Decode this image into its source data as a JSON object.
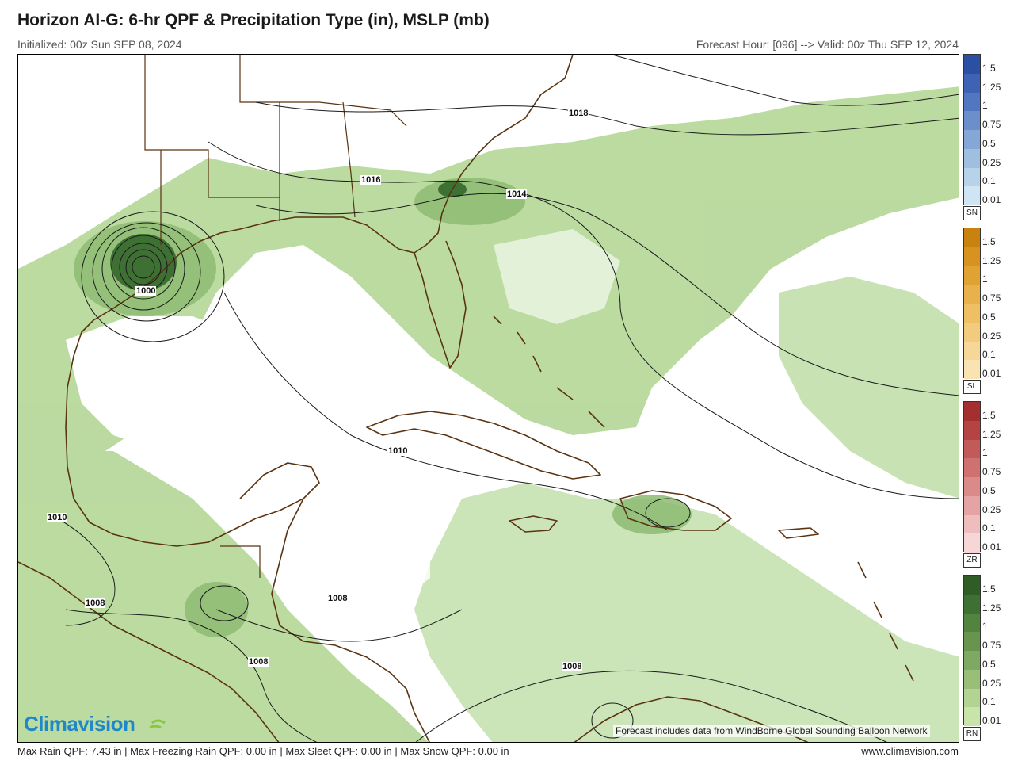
{
  "header": {
    "title": "Horizon AI-G: 6-hr QPF & Precipitation Type (in), MSLP (mb)",
    "initialized": "Initialized: 00z Sun SEP 08, 2024",
    "valid": "Forecast Hour: [096] --> Valid: 00z Thu SEP 12, 2024"
  },
  "legends": [
    {
      "tag": "SN",
      "colors": [
        "#2a4fa3",
        "#3e63b4",
        "#5177c0",
        "#6a8fcb",
        "#84a7d6",
        "#9ebfe0",
        "#b6d3ea",
        "#cfe5f3"
      ],
      "ticks": [
        "1.5",
        "1.25",
        "1",
        "0.75",
        "0.5",
        "0.25",
        "0.1",
        "0.01"
      ]
    },
    {
      "tag": "SL",
      "colors": [
        "#c9820e",
        "#d7921f",
        "#e0a233",
        "#e8b14b",
        "#efbf64",
        "#f3cb7e",
        "#f6d798",
        "#f9e3b3"
      ],
      "ticks": [
        "1.5",
        "1.25",
        "1",
        "0.75",
        "0.5",
        "0.25",
        "0.1",
        "0.01"
      ]
    },
    {
      "tag": "ZR",
      "colors": [
        "#a32f2f",
        "#b44444",
        "#c35a5a",
        "#d07171",
        "#db8a8a",
        "#e5a3a3",
        "#eebdbd",
        "#f6d6d6"
      ],
      "ticks": [
        "1.5",
        "1.25",
        "1",
        "0.75",
        "0.5",
        "0.25",
        "0.1",
        "0.01"
      ]
    },
    {
      "tag": "RN",
      "colors": [
        "#2f5d25",
        "#3f7033",
        "#52833f",
        "#67954e",
        "#7ea962",
        "#98be78",
        "#b2d492",
        "#c8e4a8"
      ],
      "ticks": [
        "1.5",
        "1.25",
        "1",
        "0.75",
        "0.5",
        "0.25",
        "0.1",
        "0.01"
      ]
    }
  ],
  "isobars": [
    {
      "label": "1018"
    },
    {
      "label": "1016"
    },
    {
      "label": "1014"
    },
    {
      "label": "1000"
    },
    {
      "label": "1010"
    },
    {
      "label": "1010"
    },
    {
      "label": "1008"
    },
    {
      "label": "1008"
    },
    {
      "label": "1008"
    },
    {
      "label": "1008"
    }
  ],
  "credit": "Forecast includes data from WindBorne Global Sounding Balloon Network",
  "logo": "Climavision",
  "footer": {
    "stats": "Max Rain QPF: 7.43 in  |  Max Freezing Rain QPF: 0.00 in  |  Max Sleet QPF: 0.00 in  |  Max Snow QPF: 0.00 in",
    "url": "www.climavision.com"
  },
  "colors": {
    "coast": "#5a3311",
    "isobar": "#1a1a1a",
    "rain_light": "#a9d18e",
    "rain_med": "#84b56b",
    "rain_heavy": "#3f7033"
  }
}
